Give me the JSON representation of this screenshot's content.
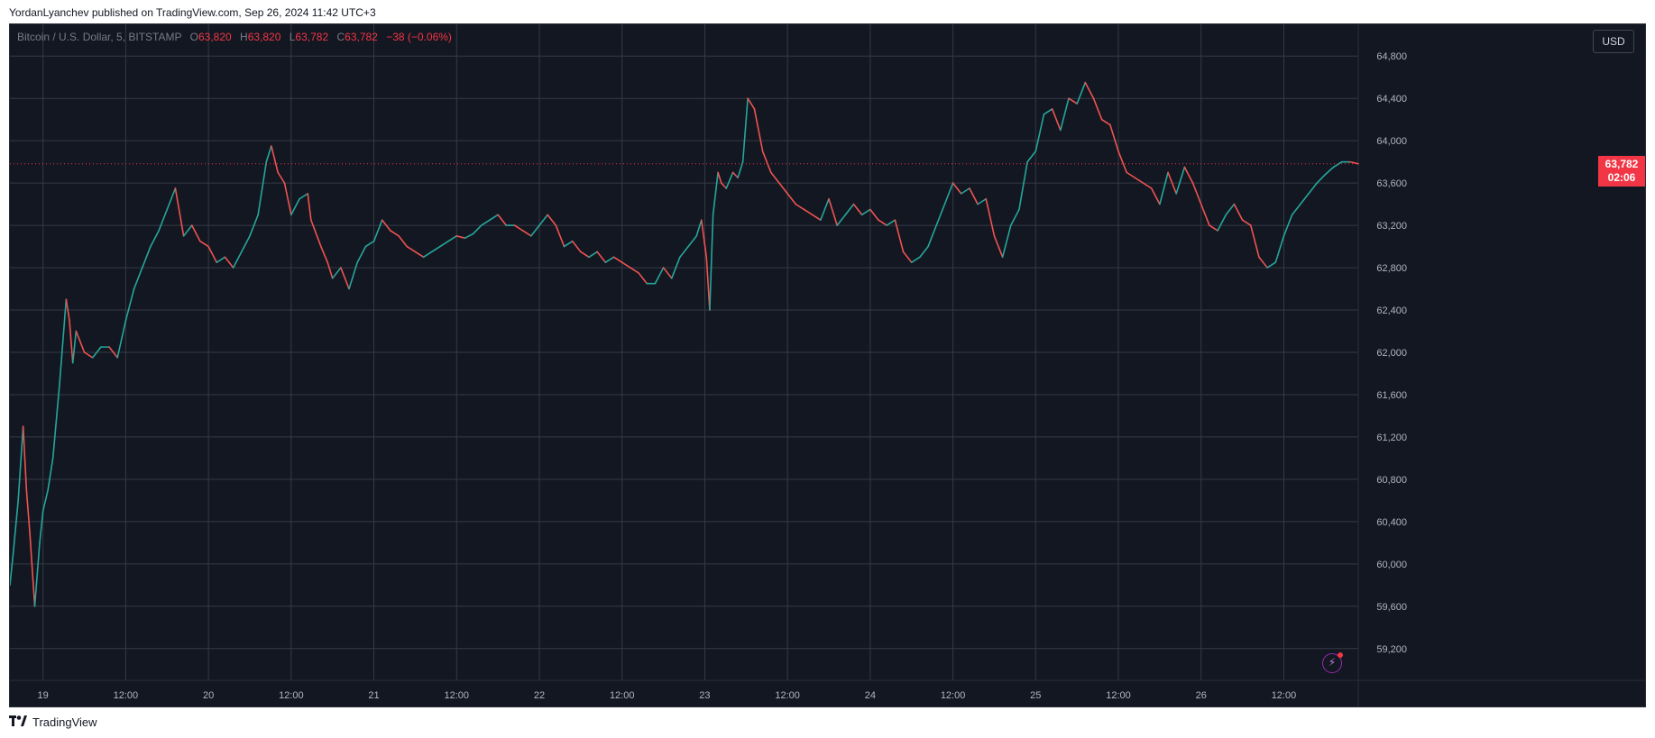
{
  "header": {
    "published_line": "YordanLyanchev published on TradingView.com, Sep 26, 2024 11:42 UTC+3"
  },
  "legend": {
    "symbol": "Bitcoin / U.S. Dollar, 5, BITSTAMP",
    "open_key": "O",
    "open_val": "63,820",
    "high_key": "H",
    "high_val": "63,820",
    "low_key": "L",
    "low_val": "63,782",
    "close_key": "C",
    "close_val": "63,782",
    "change": "−38 (−0.06%)"
  },
  "toolbar": {
    "currency_label": "USD"
  },
  "last_price": {
    "value": "63,782",
    "countdown": "02:06",
    "numeric": 63782
  },
  "footer": {
    "brand_name": "TradingView"
  },
  "colors": {
    "background": "#131722",
    "grid": "#363a45",
    "up": "#26a69a",
    "down": "#ef5350",
    "last_price": "#f23645",
    "axis_text": "#b2b5be"
  },
  "icons": {
    "alert": "bolt-icon",
    "brand": "tradingview-logo"
  },
  "chart_data": {
    "type": "line",
    "title": "Bitcoin / U.S. Dollar, 5, BITSTAMP",
    "xlabel": "",
    "ylabel": "",
    "ylim": [
      58900,
      65100
    ],
    "xlim": [
      18.8,
      26.95
    ],
    "y_ticks": [
      59200,
      59600,
      60000,
      60400,
      60800,
      61200,
      61600,
      62000,
      62400,
      62800,
      63200,
      63600,
      64000,
      64400,
      64800
    ],
    "y_tick_labels": [
      "59,200",
      "59,600",
      "60,000",
      "60,400",
      "60,800",
      "61,200",
      "61,600",
      "62,000",
      "62,400",
      "62,800",
      "63,200",
      "63,600",
      "64,000",
      "64,400",
      "64,800"
    ],
    "x_ticks": [
      19,
      19.5,
      20,
      20.5,
      21,
      21.5,
      22,
      22.5,
      23,
      23.5,
      24,
      24.5,
      25,
      25.5,
      26,
      26.5
    ],
    "x_tick_labels": [
      "19",
      "12:00",
      "20",
      "12:00",
      "21",
      "12:00",
      "22",
      "12:00",
      "23",
      "12:00",
      "24",
      "12:00",
      "25",
      "12:00",
      "26",
      "12:00"
    ],
    "x_units": "day of September 2024 (fractional)",
    "grid": true,
    "series": [
      {
        "x": [
          18.8,
          18.82,
          18.85,
          18.88,
          18.9,
          18.92,
          18.95,
          18.98,
          19.0,
          19.03,
          19.06,
          19.1,
          19.14,
          19.16,
          19.18,
          19.2,
          19.25,
          19.3,
          19.35,
          19.4,
          19.45,
          19.5,
          19.55,
          19.6,
          19.65,
          19.7,
          19.75,
          19.8,
          19.85,
          19.9,
          19.95,
          20.0,
          20.05,
          20.1,
          20.15,
          20.2,
          20.25,
          20.3,
          20.35,
          20.38,
          20.42,
          20.46,
          20.5,
          20.55,
          20.6,
          20.62,
          20.68,
          20.72,
          20.75,
          20.8,
          20.85,
          20.9,
          20.95,
          21.0,
          21.05,
          21.1,
          21.15,
          21.2,
          21.25,
          21.3,
          21.35,
          21.4,
          21.45,
          21.5,
          21.55,
          21.6,
          21.65,
          21.7,
          21.75,
          21.8,
          21.85,
          21.9,
          21.95,
          22.0,
          22.05,
          22.1,
          22.15,
          22.2,
          22.25,
          22.3,
          22.35,
          22.4,
          22.45,
          22.5,
          22.55,
          22.6,
          22.65,
          22.7,
          22.75,
          22.8,
          22.85,
          22.9,
          22.95,
          22.98,
          23.01,
          23.03,
          23.05,
          23.08,
          23.1,
          23.13,
          23.17,
          23.2,
          23.23,
          23.26,
          23.3,
          23.35,
          23.4,
          23.45,
          23.5,
          23.55,
          23.6,
          23.65,
          23.7,
          23.75,
          23.8,
          23.85,
          23.9,
          23.95,
          24.0,
          24.05,
          24.1,
          24.15,
          24.2,
          24.25,
          24.3,
          24.35,
          24.4,
          24.45,
          24.5,
          24.55,
          24.6,
          24.65,
          24.7,
          24.75,
          24.8,
          24.85,
          24.9,
          24.95,
          25.0,
          25.05,
          25.1,
          25.15,
          25.2,
          25.25,
          25.3,
          25.35,
          25.4,
          25.45,
          25.5,
          25.55,
          25.6,
          25.65,
          25.7,
          25.75,
          25.8,
          25.85,
          25.9,
          25.95,
          26.0,
          26.05,
          26.1,
          26.15,
          26.2,
          26.25,
          26.3,
          26.35,
          26.4,
          26.45,
          26.5,
          26.55,
          26.6,
          26.65,
          26.7,
          26.75,
          26.8,
          26.85,
          26.9,
          26.95
        ],
        "values": [
          59800,
          60100,
          60600,
          61300,
          60700,
          60300,
          59600,
          60200,
          60500,
          60700,
          61000,
          61700,
          62500,
          62300,
          61900,
          62200,
          62000,
          61950,
          62050,
          62050,
          61950,
          62300,
          62600,
          62800,
          63000,
          63150,
          63350,
          63550,
          63100,
          63200,
          63050,
          63000,
          62850,
          62900,
          62800,
          62950,
          63100,
          63300,
          63800,
          63950,
          63700,
          63600,
          63300,
          63450,
          63500,
          63250,
          63000,
          62850,
          62700,
          62800,
          62600,
          62850,
          63000,
          63050,
          63250,
          63150,
          63100,
          63000,
          62950,
          62900,
          62950,
          63000,
          63050,
          63100,
          63080,
          63120,
          63200,
          63250,
          63300,
          63200,
          63200,
          63150,
          63100,
          63200,
          63300,
          63200,
          63000,
          63050,
          62950,
          62900,
          62950,
          62850,
          62900,
          62850,
          62800,
          62750,
          62650,
          62650,
          62800,
          62700,
          62900,
          63000,
          63100,
          63250,
          62900,
          62400,
          63300,
          63700,
          63600,
          63550,
          63700,
          63650,
          63800,
          64400,
          64300,
          63900,
          63700,
          63600,
          63500,
          63400,
          63350,
          63300,
          63250,
          63450,
          63200,
          63300,
          63400,
          63300,
          63350,
          63250,
          63200,
          63250,
          62950,
          62850,
          62900,
          63000,
          63200,
          63400,
          63600,
          63500,
          63550,
          63400,
          63450,
          63100,
          62900,
          63200,
          63350,
          63800,
          63900,
          64250,
          64300,
          64100,
          64400,
          64350,
          64550,
          64400,
          64200,
          64150,
          63900,
          63700,
          63650,
          63600,
          63550,
          63400,
          63700,
          63500,
          63750,
          63600,
          63400,
          63200,
          63150,
          63300,
          63400,
          63250,
          63200,
          62900,
          62800,
          62850,
          63100,
          63300,
          63400,
          63500,
          63600,
          63680,
          63750,
          63800,
          63800,
          63782
        ]
      }
    ]
  }
}
